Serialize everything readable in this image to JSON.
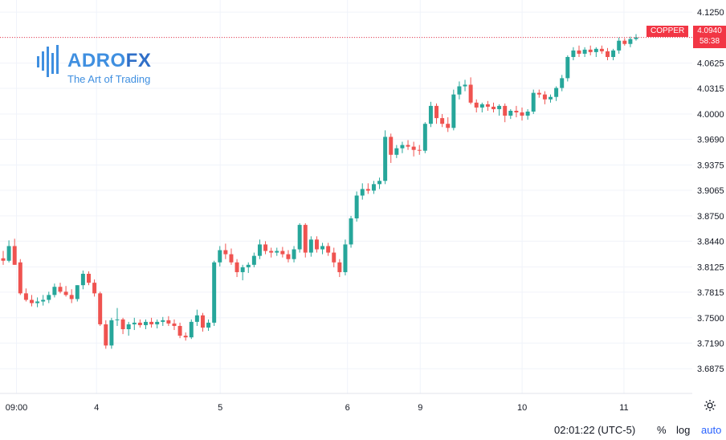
{
  "logo": {
    "brand_main": "ADRO",
    "brand_accent": "FX",
    "tagline": "The Art of Trading",
    "color": "#3f8fe0"
  },
  "symbol": {
    "name": "COPPER",
    "last_price": "4.0940",
    "countdown": "58:38",
    "tag_color": "#f23645"
  },
  "footer": {
    "clock": "02:01:22 (UTC-5)",
    "percent_label": "%",
    "log_label": "log",
    "auto_label": "auto"
  },
  "settings_icon": "gear-icon",
  "chart_data": {
    "type": "candlestick",
    "symbol": "COPPER",
    "ylim": [
      3.67,
      4.135
    ],
    "y_ticks": [
      "4.1250",
      "4.0940",
      "4.0625",
      "4.0315",
      "4.0000",
      "3.9690",
      "3.9375",
      "3.9065",
      "3.8750",
      "3.8440",
      "3.8125",
      "3.7815",
      "3.7500",
      "3.7190",
      "3.6875"
    ],
    "x_ticks": [
      "09:00",
      "4",
      "5",
      "6",
      "9",
      "10",
      "11"
    ],
    "last_price": 4.094,
    "grid": true,
    "up_color": "#26a69a",
    "down_color": "#ef5350",
    "candles": [
      [
        3.823,
        3.832,
        3.815,
        3.82
      ],
      [
        3.82,
        3.845,
        3.818,
        3.838
      ],
      [
        3.838,
        3.847,
        3.815,
        3.815
      ],
      [
        3.818,
        3.822,
        3.778,
        3.78
      ],
      [
        3.78,
        3.786,
        3.77,
        3.772
      ],
      [
        3.772,
        3.778,
        3.764,
        3.768
      ],
      [
        3.768,
        3.775,
        3.763,
        3.77
      ],
      [
        3.77,
        3.778,
        3.765,
        3.772
      ],
      [
        3.772,
        3.782,
        3.768,
        3.778
      ],
      [
        3.778,
        3.792,
        3.775,
        3.788
      ],
      [
        3.788,
        3.793,
        3.78,
        3.782
      ],
      [
        3.782,
        3.789,
        3.776,
        3.778
      ],
      [
        3.778,
        3.785,
        3.768,
        3.773
      ],
      [
        3.773,
        3.79,
        3.77,
        3.79
      ],
      [
        3.79,
        3.808,
        3.785,
        3.804
      ],
      [
        3.804,
        3.807,
        3.79,
        3.793
      ],
      [
        3.793,
        3.797,
        3.776,
        3.78
      ],
      [
        3.78,
        3.782,
        3.74,
        3.742
      ],
      [
        3.742,
        3.747,
        3.712,
        3.716
      ],
      [
        3.716,
        3.75,
        3.712,
        3.747
      ],
      [
        3.747,
        3.762,
        3.74,
        3.748
      ],
      [
        3.748,
        3.75,
        3.73,
        3.736
      ],
      [
        3.736,
        3.745,
        3.728,
        3.742
      ],
      [
        3.742,
        3.75,
        3.735,
        3.744
      ],
      [
        3.744,
        3.748,
        3.738,
        3.741
      ],
      [
        3.741,
        3.748,
        3.736,
        3.745
      ],
      [
        3.745,
        3.75,
        3.738,
        3.742
      ],
      [
        3.742,
        3.748,
        3.737,
        3.745
      ],
      [
        3.745,
        3.751,
        3.74,
        3.747
      ],
      [
        3.747,
        3.752,
        3.74,
        3.743
      ],
      [
        3.743,
        3.748,
        3.735,
        3.74
      ],
      [
        3.74,
        3.744,
        3.725,
        3.728
      ],
      [
        3.728,
        3.732,
        3.722,
        3.726
      ],
      [
        3.726,
        3.748,
        3.724,
        3.745
      ],
      [
        3.745,
        3.76,
        3.74,
        3.753
      ],
      [
        3.753,
        3.756,
        3.733,
        3.738
      ],
      [
        3.738,
        3.748,
        3.734,
        3.744
      ],
      [
        3.744,
        3.82,
        3.74,
        3.818
      ],
      [
        3.818,
        3.838,
        3.813,
        3.833
      ],
      [
        3.833,
        3.841,
        3.822,
        3.828
      ],
      [
        3.828,
        3.835,
        3.815,
        3.818
      ],
      [
        3.818,
        3.822,
        3.8,
        3.806
      ],
      [
        3.806,
        3.815,
        3.796,
        3.812
      ],
      [
        3.812,
        3.818,
        3.805,
        3.815
      ],
      [
        3.815,
        3.83,
        3.812,
        3.826
      ],
      [
        3.826,
        3.846,
        3.822,
        3.84
      ],
      [
        3.84,
        3.844,
        3.828,
        3.832
      ],
      [
        3.832,
        3.836,
        3.824,
        3.83
      ],
      [
        3.83,
        3.836,
        3.826,
        3.832
      ],
      [
        3.832,
        3.837,
        3.824,
        3.828
      ],
      [
        3.828,
        3.833,
        3.818,
        3.822
      ],
      [
        3.822,
        3.838,
        3.818,
        3.834
      ],
      [
        3.834,
        3.866,
        3.83,
        3.864
      ],
      [
        3.864,
        3.866,
        3.824,
        3.83
      ],
      [
        3.83,
        3.85,
        3.825,
        3.846
      ],
      [
        3.846,
        3.85,
        3.83,
        3.834
      ],
      [
        3.834,
        3.842,
        3.828,
        3.838
      ],
      [
        3.838,
        3.842,
        3.826,
        3.83
      ],
      [
        3.83,
        3.836,
        3.812,
        3.818
      ],
      [
        3.818,
        3.822,
        3.8,
        3.806
      ],
      [
        3.806,
        3.846,
        3.802,
        3.84
      ],
      [
        3.84,
        3.875,
        3.836,
        3.872
      ],
      [
        3.872,
        3.905,
        3.868,
        3.9
      ],
      [
        3.9,
        3.915,
        3.895,
        3.908
      ],
      [
        3.908,
        3.915,
        3.902,
        3.906
      ],
      [
        3.906,
        3.918,
        3.902,
        3.914
      ],
      [
        3.914,
        3.922,
        3.908,
        3.918
      ],
      [
        3.918,
        3.98,
        3.914,
        3.972
      ],
      [
        3.972,
        3.976,
        3.94,
        3.95
      ],
      [
        3.95,
        3.962,
        3.946,
        3.958
      ],
      [
        3.958,
        3.966,
        3.952,
        3.962
      ],
      [
        3.962,
        3.968,
        3.956,
        3.96
      ],
      [
        3.96,
        3.966,
        3.948,
        3.956
      ],
      [
        3.956,
        3.962,
        3.95,
        3.955
      ],
      [
        3.955,
        3.99,
        3.952,
        3.988
      ],
      [
        3.988,
        4.015,
        3.984,
        4.01
      ],
      [
        4.01,
        4.013,
        3.988,
        3.995
      ],
      [
        3.995,
        4.0,
        3.984,
        3.988
      ],
      [
        3.988,
        3.996,
        3.978,
        3.983
      ],
      [
        3.983,
        4.03,
        3.98,
        4.024
      ],
      [
        4.024,
        4.04,
        4.018,
        4.034
      ],
      [
        4.034,
        4.042,
        4.028,
        4.036
      ],
      [
        4.036,
        4.045,
        4.012,
        4.014
      ],
      [
        4.014,
        4.018,
        4.002,
        4.008
      ],
      [
        4.008,
        4.014,
        4.002,
        4.012
      ],
      [
        4.012,
        4.016,
        4.004,
        4.009
      ],
      [
        4.009,
        4.014,
        4.002,
        4.006
      ],
      [
        4.006,
        4.012,
        3.998,
        4.01
      ],
      [
        4.01,
        4.013,
        3.99,
        3.998
      ],
      [
        3.998,
        4.006,
        3.994,
        4.004
      ],
      [
        4.004,
        4.01,
        3.996,
        4.002
      ],
      [
        4.002,
        4.008,
        3.992,
        3.998
      ],
      [
        3.998,
        4.006,
        3.993,
        4.003
      ],
      [
        4.003,
        4.03,
        4.0,
        4.026
      ],
      [
        4.026,
        4.03,
        4.02,
        4.024
      ],
      [
        4.024,
        4.028,
        4.012,
        4.018
      ],
      [
        4.018,
        4.024,
        4.014,
        4.021
      ],
      [
        4.021,
        4.034,
        4.016,
        4.032
      ],
      [
        4.032,
        4.048,
        4.028,
        4.044
      ],
      [
        4.044,
        4.072,
        4.04,
        4.07
      ],
      [
        4.07,
        4.082,
        4.066,
        4.078
      ],
      [
        4.078,
        4.084,
        4.07,
        4.074
      ],
      [
        4.074,
        4.082,
        4.07,
        4.079
      ],
      [
        4.079,
        4.084,
        4.072,
        4.076
      ],
      [
        4.076,
        4.082,
        4.07,
        4.08
      ],
      [
        4.08,
        4.084,
        4.074,
        4.077
      ],
      [
        4.077,
        4.081,
        4.066,
        4.07
      ],
      [
        4.07,
        4.08,
        4.066,
        4.078
      ],
      [
        4.078,
        4.094,
        4.074,
        4.09
      ],
      [
        4.09,
        4.093,
        4.084,
        4.086
      ],
      [
        4.086,
        4.095,
        4.082,
        4.092
      ],
      [
        4.092,
        4.098,
        4.09,
        4.094
      ]
    ]
  }
}
